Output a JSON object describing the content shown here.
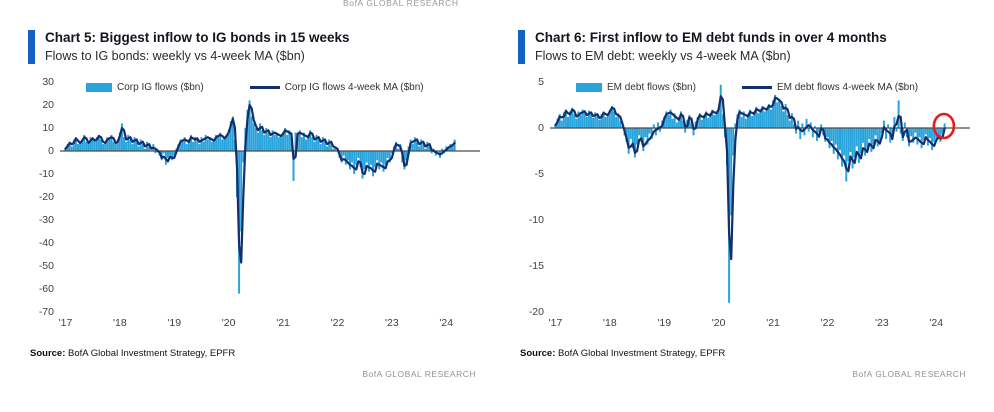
{
  "page": {
    "top_brand": "BofA GLOBAL RESEARCH"
  },
  "colors": {
    "flow_fill": "#29A3DB",
    "ma_line": "#142F6B",
    "title_accent_bar": "#1362C5",
    "zero_line": "#4d4d4d",
    "annotation_red": "#E31C1C",
    "brand_grey": "#929292"
  },
  "chart_data": [
    {
      "type": "bar",
      "title": "Chart 5: Biggest inflow to IG bonds in 15 weeks",
      "subtitle": "Flows to IG bonds: weekly vs 4-week MA ($bn)",
      "source_label": "Source:",
      "source_text": "BofA Global Investment Strategy, EPFR",
      "brand": "BofA GLOBAL RESEARCH",
      "legend_position": "top",
      "grid": false,
      "x_start": 2017.0,
      "x_step": 0.03846,
      "x_step_unit": "2 weeks",
      "xlim": [
        2016.9,
        2024.62
      ],
      "ylim": [
        -70,
        30
      ],
      "yticks": [
        30,
        20,
        10,
        0,
        -10,
        -20,
        -30,
        -40,
        -50,
        -60,
        -70
      ],
      "xticks": [
        "'17",
        "'18",
        "'19",
        "'20",
        "'21",
        "'22",
        "'23",
        "'24"
      ],
      "xtick_years": [
        2017,
        2018,
        2019,
        2020,
        2021,
        2022,
        2023,
        2024
      ],
      "annotation": null,
      "series": [
        {
          "name": "Corp IG flows ($bn)",
          "render": "bar",
          "color": "#29A3DB",
          "values": [
            1,
            3,
            4,
            2,
            5,
            6,
            3,
            4,
            5,
            7,
            4,
            3,
            6,
            5,
            4,
            6,
            7,
            5,
            3,
            4,
            6,
            5,
            7,
            4,
            3,
            5,
            8,
            12,
            6,
            4,
            7,
            5,
            3,
            6,
            4,
            2,
            5,
            3,
            1,
            4,
            2,
            0,
            3,
            -1,
            1,
            -2,
            -4,
            -1,
            -6,
            -3,
            -2,
            -4,
            -2,
            1,
            3,
            5,
            4,
            6,
            3,
            5,
            7,
            4,
            6,
            5,
            3,
            6,
            4,
            7,
            5,
            6,
            4,
            5,
            7,
            6,
            8,
            5,
            6,
            7,
            9,
            13,
            15,
            5,
            -20,
            -62,
            -35,
            -5,
            10,
            18,
            22,
            15,
            12,
            10,
            8,
            12,
            9,
            7,
            10,
            8,
            6,
            9,
            7,
            8,
            6,
            7,
            8,
            10,
            7,
            9,
            6,
            -13,
            8,
            7,
            9,
            6,
            8,
            5,
            7,
            9,
            6,
            4,
            7,
            5,
            3,
            6,
            4,
            2,
            5,
            3,
            1,
            2,
            0,
            -3,
            -5,
            -2,
            -6,
            -4,
            -8,
            -5,
            -10,
            -6,
            -3,
            -7,
            -12,
            -8,
            -5,
            -9,
            -6,
            -11,
            -7,
            -4,
            -8,
            -5,
            -9,
            -6,
            -3,
            -5,
            -1,
            2,
            4,
            1,
            3,
            -5,
            -8,
            -4,
            2,
            5,
            3,
            6,
            4,
            2,
            5,
            3,
            1,
            4,
            2,
            -1,
            1,
            -2,
            0,
            -3,
            1,
            -1,
            2,
            1,
            3,
            2,
            5
          ]
        },
        {
          "name": "Corp IG flows 4-week MA ($bn)",
          "render": "line",
          "color": "#142F6B",
          "derivation": "4-week moving average of weekly flows",
          "window_samples": 2
        }
      ]
    },
    {
      "type": "bar",
      "title": "Chart 6: First inflow to EM debt funds in over 4 months",
      "subtitle": "Flows to EM debt: weekly vs 4-week MA ($bn)",
      "source_label": "Source:",
      "source_text": "BofA Global Investment Strategy, EPFR",
      "brand": "BofA GLOBAL RESEARCH",
      "legend_position": "top",
      "grid": false,
      "x_start": 2017.0,
      "x_step": 0.03846,
      "x_step_unit": "2 weeks",
      "xlim": [
        2016.9,
        2024.62
      ],
      "ylim": [
        -20,
        5
      ],
      "yticks": [
        5,
        0,
        -5,
        -10,
        -15,
        -20
      ],
      "xticks": [
        "'17",
        "'18",
        "'19",
        "'20",
        "'21",
        "'22",
        "'23",
        "'24"
      ],
      "xtick_years": [
        2017,
        2018,
        2019,
        2020,
        2021,
        2022,
        2023,
        2024
      ],
      "annotation": {
        "shape": "circle",
        "x": 2024.14,
        "y": 0,
        "color": "#E31C1C",
        "meaning": "first inflow highlighted"
      },
      "series": [
        {
          "name": "EM debt flows ($bn)",
          "render": "bar",
          "color": "#29A3DB",
          "values": [
            0.3,
            1.0,
            1.5,
            0.8,
            1.7,
            2.0,
            1.2,
            1.8,
            2.2,
            1.5,
            1.0,
            1.8,
            1.4,
            2.0,
            1.6,
            1.2,
            1.9,
            1.5,
            1.1,
            1.7,
            1.3,
            0.9,
            1.5,
            1.8,
            1.2,
            1.6,
            2.0,
            2.4,
            1.8,
            1.2,
            1.6,
            0.8,
            0.2,
            -0.8,
            -1.5,
            -2.8,
            -1.2,
            -2.2,
            -3.2,
            -1.8,
            -0.8,
            -1.5,
            -2.5,
            -1.0,
            -1.8,
            -0.6,
            -1.2,
            0.4,
            -0.8,
            0.6,
            -0.4,
            0.8,
            1.2,
            1.8,
            1.4,
            2.0,
            1.0,
            1.6,
            0.6,
            1.2,
            1.8,
            0.8,
            -0.5,
            0.9,
            1.4,
            0.6,
            -0.8,
            0.7,
            1.2,
            1.6,
            0.9,
            1.4,
            1.8,
            1.1,
            1.6,
            2.0,
            1.4,
            1.8,
            2.2,
            4.7,
            1.5,
            -1.0,
            -4.0,
            -19.0,
            -9.5,
            -3.0,
            0.5,
            1.5,
            2.0,
            1.2,
            1.8,
            1.0,
            1.5,
            2.0,
            1.3,
            1.8,
            2.3,
            1.6,
            2.0,
            2.4,
            1.8,
            2.2,
            2.6,
            2.0,
            3.0,
            3.6,
            2.8,
            3.2,
            2.4,
            1.8,
            2.6,
            1.4,
            0.8,
            1.6,
            0.4,
            -0.6,
            0.8,
            -1.2,
            0.5,
            -0.8,
            1.0,
            -0.4,
            0.6,
            -1.0,
            0.2,
            -1.4,
            -0.5,
            0.4,
            -0.8,
            -1.5,
            -1.0,
            -2.2,
            -1.4,
            -2.8,
            -1.8,
            -3.4,
            -2.4,
            -4.2,
            -3.0,
            -5.8,
            -3.6,
            -2.6,
            -4.4,
            -3.2,
            -2.0,
            -3.8,
            -2.8,
            -1.6,
            -3.0,
            -2.2,
            -1.2,
            -2.6,
            -1.8,
            -0.8,
            -2.0,
            -1.4,
            -0.6,
            0.8,
            -1.2,
            0.4,
            -1.6,
            -0.8,
            1.2,
            -0.4,
            3.0,
            -0.6,
            -1.4,
            0.6,
            -1.0,
            -2.0,
            -0.9,
            -1.6,
            -0.5,
            -1.8,
            -1.0,
            -2.2,
            -1.3,
            -0.7,
            -1.9,
            -1.1,
            -2.4,
            -1.5,
            -1.2,
            -0.8,
            -1.5,
            -0.6,
            0.5
          ]
        },
        {
          "name": "EM debt flows 4-week MA ($bn)",
          "render": "line",
          "color": "#142F6B",
          "derivation": "4-week moving average of weekly flows",
          "window_samples": 2
        }
      ]
    }
  ]
}
